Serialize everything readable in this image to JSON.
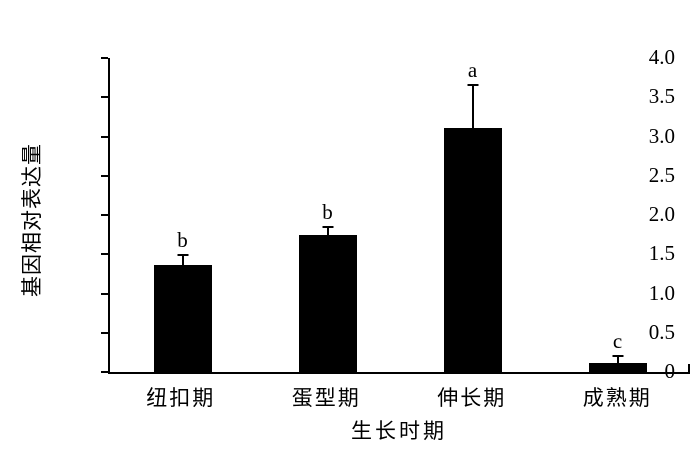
{
  "chart_data": {
    "type": "bar",
    "title": "",
    "categories": [
      "纽扣期",
      "蛋型期",
      "伸长期",
      "成熟期"
    ],
    "values": [
      1.36,
      1.75,
      3.11,
      0.12
    ],
    "error_plus": [
      0.12,
      0.08,
      0.53,
      0.07
    ],
    "sig_letters": [
      "b",
      "b",
      "a",
      "c"
    ],
    "xlabel": "生长时期",
    "ylabel": "基因相对表达量",
    "ylim": [
      0,
      4.0
    ],
    "ytick_step": 0.5,
    "ytick_labels": [
      "0",
      "0.5",
      "1.0",
      "1.5",
      "2.0",
      "2.5",
      "3.0",
      "3.5",
      "4.0"
    ],
    "bar_color": "#000000",
    "axis_color": "#000000",
    "background_color": "#ffffff",
    "grid": false,
    "legend": null
  }
}
